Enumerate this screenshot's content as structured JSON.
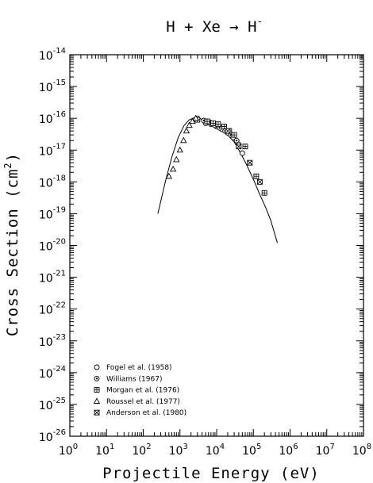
{
  "chart_data": {
    "type": "scatter",
    "title_text": "H + Xe → H",
    "title_superscript": "-",
    "xlabel": "Projectile Energy (eV)",
    "ylabel_prefix": "Cross Section (cm",
    "ylabel_superscript": "2",
    "ylabel_suffix": ")",
    "x_scale": "log",
    "y_scale": "log",
    "xlim": [
      1,
      100000000
    ],
    "ylim": [
      1e-26,
      1e-14
    ],
    "x_tick_exponents": [
      0,
      1,
      2,
      3,
      4,
      5,
      6,
      7,
      8
    ],
    "y_tick_exponents": [
      -14,
      -15,
      -16,
      -17,
      -18,
      -19,
      -20,
      -21,
      -22,
      -23,
      -24,
      -25,
      -26
    ],
    "tick_base": "10",
    "grid": false,
    "legend_position": "bottom-left",
    "fit_curve": {
      "x": [
        250,
        400,
        600,
        900,
        1300,
        1800,
        2500,
        3500,
        5000,
        7000,
        10000,
        15000,
        20000,
        30000,
        45000,
        65000,
        100000,
        150000,
        220000,
        300000,
        450000
      ],
      "y": [
        1e-19,
        1e-18,
        6e-18,
        2.5e-17,
        6e-17,
        9e-17,
        1.05e-16,
        9.8e-17,
        8.5e-17,
        7e-17,
        5.5e-17,
        4e-17,
        3e-17,
        1.8e-17,
        8e-18,
        3.5e-18,
        1.2e-18,
        4e-19,
        1.5e-19,
        6e-20,
        1.2e-20
      ]
    },
    "series": [
      {
        "name": "Fogel et al. (1958)",
        "marker": "circle",
        "x": [
          5000,
          7000,
          10000,
          14000,
          20000,
          28000,
          40000,
          50000
        ],
        "y": [
          7e-17,
          6.5e-17,
          5.5e-17,
          4.5e-17,
          3.5e-17,
          2.5e-17,
          1.5e-17,
          8e-18
        ]
      },
      {
        "name": "Williams (1967)",
        "marker": "circle-dot",
        "x": [
          3000,
          4500,
          6500,
          9000,
          12000,
          17000,
          24000,
          35000
        ],
        "y": [
          1e-16,
          8.5e-17,
          7.5e-17,
          6e-17,
          5e-17,
          4e-17,
          3e-17,
          2e-17
        ]
      },
      {
        "name": "Morgan et al. (1976)",
        "marker": "square-plus",
        "x": [
          3000,
          5500,
          8000,
          11000,
          16000,
          22000,
          30000,
          60000,
          120000,
          200000
        ],
        "y": [
          9e-17,
          8e-17,
          7e-17,
          6.5e-17,
          5.5e-17,
          4e-17,
          3e-17,
          1.3e-17,
          1.5e-18,
          4.5e-19
        ]
      },
      {
        "name": "Roussel et al. (1977)",
        "marker": "triangle",
        "x": [
          500,
          650,
          800,
          1000,
          1250,
          1500,
          1800,
          2200,
          2700
        ],
        "y": [
          1.5e-18,
          2.5e-18,
          5e-18,
          1e-17,
          2e-17,
          4e-17,
          6e-17,
          8e-17,
          1e-16
        ]
      },
      {
        "name": "Anderson et al. (1980)",
        "marker": "square-x",
        "x": [
          20000,
          40000,
          80000,
          150000
        ],
        "y": [
          4e-17,
          1.3e-17,
          4e-18,
          1e-18
        ]
      }
    ]
  }
}
